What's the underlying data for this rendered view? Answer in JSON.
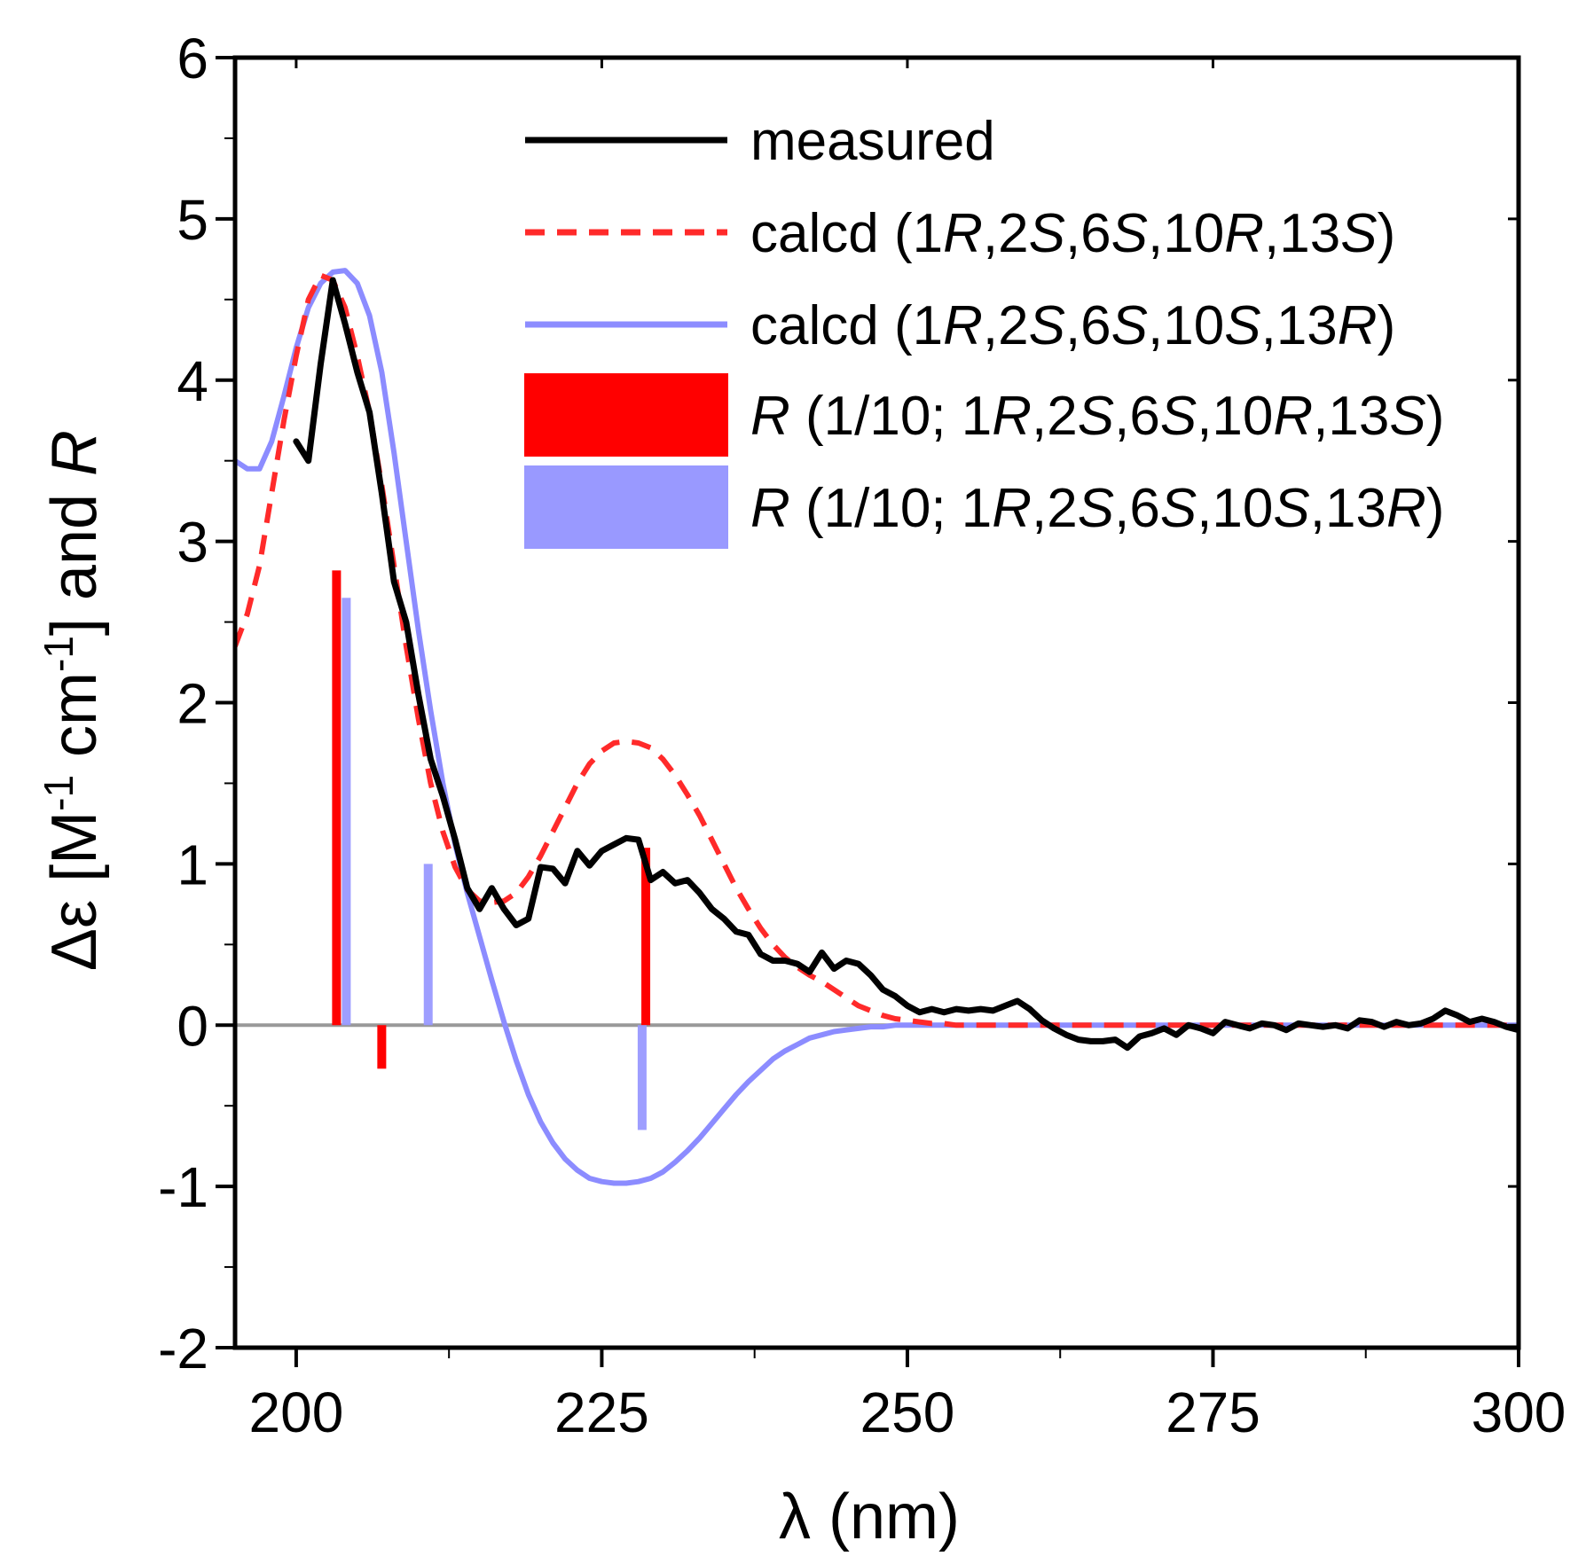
{
  "chart_data": {
    "type": "line",
    "title": "",
    "xlabel": "λ (nm)",
    "ylabel_parts": {
      "delta": "Δε [M",
      "exp1": "-1",
      "mid": " cm",
      "exp2": "-1",
      "end": "] and ",
      "R": "R"
    },
    "xlim": [
      195,
      300
    ],
    "ylim": [
      -2,
      6
    ],
    "x_ticks": [
      200,
      225,
      250,
      275,
      300
    ],
    "y_ticks": [
      -2,
      -1,
      0,
      1,
      2,
      3,
      4,
      5,
      6
    ],
    "x_tick_labels": [
      "200",
      "225",
      "250",
      "275",
      "300"
    ],
    "y_tick_labels": [
      "-2",
      "-1",
      "0",
      "1",
      "2",
      "3",
      "4",
      "5",
      "6"
    ],
    "zero_line": true,
    "legend": {
      "position": "top-right",
      "entries": [
        {
          "kind": "line",
          "color": "#000000",
          "dash": false,
          "parts": [
            {
              "t": "measured",
              "i": false
            }
          ]
        },
        {
          "kind": "line",
          "color": "#ff2a2a",
          "dash": true,
          "parts": [
            {
              "t": "calcd (1",
              "i": false
            },
            {
              "t": "R",
              "i": true
            },
            {
              "t": ",2",
              "i": false
            },
            {
              "t": "S",
              "i": true
            },
            {
              "t": ",6",
              "i": false
            },
            {
              "t": "S",
              "i": true
            },
            {
              "t": ",10",
              "i": false
            },
            {
              "t": "R",
              "i": true
            },
            {
              "t": ",13",
              "i": false
            },
            {
              "t": "S",
              "i": true
            },
            {
              "t": ")",
              "i": false
            }
          ]
        },
        {
          "kind": "line",
          "color": "#8c8cff",
          "dash": false,
          "parts": [
            {
              "t": "calcd (1",
              "i": false
            },
            {
              "t": "R",
              "i": true
            },
            {
              "t": ",2",
              "i": false
            },
            {
              "t": "S",
              "i": true
            },
            {
              "t": ",6",
              "i": false
            },
            {
              "t": "S",
              "i": true
            },
            {
              "t": ",10",
              "i": false
            },
            {
              "t": "S",
              "i": true
            },
            {
              "t": ",13",
              "i": false
            },
            {
              "t": "R",
              "i": true
            },
            {
              "t": ")",
              "i": false
            }
          ]
        },
        {
          "kind": "box",
          "color": "#ff0000",
          "parts": [
            {
              "t": "R",
              "i": true
            },
            {
              "t": " (1/10; 1",
              "i": false
            },
            {
              "t": "R",
              "i": true
            },
            {
              "t": ",2",
              "i": false
            },
            {
              "t": "S",
              "i": true
            },
            {
              "t": ",6",
              "i": false
            },
            {
              "t": "S",
              "i": true
            },
            {
              "t": ",10",
              "i": false
            },
            {
              "t": "R",
              "i": true
            },
            {
              "t": ",13",
              "i": false
            },
            {
              "t": "S",
              "i": true
            },
            {
              "t": ")",
              "i": false
            }
          ]
        },
        {
          "kind": "box",
          "color": "#9999ff",
          "parts": [
            {
              "t": "R",
              "i": true
            },
            {
              "t": " (1/10; 1",
              "i": false
            },
            {
              "t": "R",
              "i": true
            },
            {
              "t": ",2",
              "i": false
            },
            {
              "t": "S",
              "i": true
            },
            {
              "t": ",6",
              "i": false
            },
            {
              "t": "S",
              "i": true
            },
            {
              "t": ",10",
              "i": false
            },
            {
              "t": "S",
              "i": true
            },
            {
              "t": ",13",
              "i": false
            },
            {
              "t": "R",
              "i": true
            },
            {
              "t": ")",
              "i": false
            }
          ]
        }
      ]
    },
    "series": [
      {
        "name": "measured",
        "color": "#000000",
        "dash": false,
        "x": [
          200,
          201,
          202,
          203,
          204,
          205,
          206,
          207,
          208,
          209,
          210,
          211,
          212,
          213,
          214,
          215,
          216,
          217,
          218,
          219,
          220,
          221,
          222,
          223,
          224,
          225,
          226,
          227,
          228,
          229,
          230,
          231,
          232,
          233,
          234,
          235,
          236,
          237,
          238,
          239,
          240,
          241,
          242,
          243,
          244,
          245,
          246,
          247,
          248,
          249,
          250,
          251,
          252,
          253,
          254,
          255,
          256,
          257,
          258,
          259,
          260,
          261,
          262,
          263,
          264,
          265,
          266,
          267,
          268,
          269,
          270,
          271,
          272,
          273,
          274,
          275,
          276,
          277,
          278,
          279,
          280,
          281,
          282,
          283,
          284,
          285,
          286,
          287,
          288,
          289,
          290,
          291,
          292,
          293,
          294,
          295,
          296,
          297,
          298,
          299,
          300
        ],
        "y": [
          3.62,
          3.5,
          4.1,
          4.62,
          4.35,
          4.05,
          3.8,
          3.3,
          2.75,
          2.5,
          2.05,
          1.65,
          1.42,
          1.15,
          0.85,
          0.72,
          0.85,
          0.72,
          0.62,
          0.66,
          0.98,
          0.97,
          0.88,
          1.08,
          0.99,
          1.08,
          1.12,
          1.16,
          1.15,
          0.9,
          0.95,
          0.88,
          0.9,
          0.82,
          0.72,
          0.66,
          0.58,
          0.56,
          0.44,
          0.4,
          0.4,
          0.38,
          0.33,
          0.45,
          0.35,
          0.4,
          0.38,
          0.31,
          0.22,
          0.18,
          0.12,
          0.08,
          0.1,
          0.08,
          0.1,
          0.09,
          0.1,
          0.09,
          0.12,
          0.15,
          0.1,
          0.03,
          -0.02,
          -0.06,
          -0.09,
          -0.1,
          -0.1,
          -0.09,
          -0.14,
          -0.07,
          -0.05,
          -0.02,
          -0.06,
          0.0,
          -0.02,
          -0.05,
          0.02,
          0.0,
          -0.02,
          0.01,
          0.0,
          -0.03,
          0.01,
          0.0,
          -0.01,
          0.0,
          -0.02,
          0.03,
          0.02,
          -0.01,
          0.02,
          0.0,
          0.01,
          0.04,
          0.09,
          0.06,
          0.02,
          0.04,
          0.02,
          -0.01,
          -0.03
        ]
      },
      {
        "name": "calcd (1R,2S,6S,10R,13S)",
        "color": "#ff2a2a",
        "dash": true,
        "x": [
          195,
          196,
          197,
          198,
          199,
          200,
          201,
          202,
          203,
          204,
          205,
          206,
          207,
          208,
          209,
          210,
          211,
          212,
          213,
          214,
          215,
          216,
          217,
          218,
          219,
          220,
          221,
          222,
          223,
          224,
          225,
          226,
          227,
          228,
          229,
          230,
          231,
          232,
          233,
          234,
          235,
          236,
          237,
          238,
          239,
          240,
          241,
          242,
          243,
          244,
          245,
          246,
          247,
          248,
          249,
          250,
          251,
          252,
          253,
          254,
          255,
          258,
          262,
          266,
          270,
          275,
          280,
          285,
          290,
          295,
          300
        ],
        "y": [
          2.35,
          2.55,
          2.85,
          3.3,
          3.75,
          4.15,
          4.5,
          4.65,
          4.62,
          4.45,
          4.15,
          3.8,
          3.35,
          2.85,
          2.35,
          1.9,
          1.5,
          1.2,
          0.98,
          0.84,
          0.77,
          0.76,
          0.77,
          0.82,
          0.92,
          1.05,
          1.2,
          1.35,
          1.5,
          1.62,
          1.7,
          1.75,
          1.76,
          1.75,
          1.72,
          1.65,
          1.55,
          1.43,
          1.3,
          1.15,
          1.0,
          0.85,
          0.72,
          0.6,
          0.5,
          0.42,
          0.36,
          0.31,
          0.27,
          0.22,
          0.17,
          0.12,
          0.09,
          0.06,
          0.04,
          0.03,
          0.02,
          0.01,
          0.01,
          0.0,
          0.0,
          0.0,
          0.0,
          0.0,
          0.0,
          0.0,
          0.0,
          0.0,
          0.0,
          0.0,
          0.0
        ]
      },
      {
        "name": "calcd (1R,2S,6S,10S,13R)",
        "color": "#8c8cff",
        "dash": false,
        "x": [
          195,
          196,
          197,
          198,
          199,
          200,
          201,
          202,
          203,
          204,
          205,
          206,
          207,
          208,
          209,
          210,
          211,
          212,
          213,
          214,
          215,
          216,
          217,
          218,
          219,
          220,
          221,
          222,
          223,
          224,
          225,
          226,
          227,
          228,
          229,
          230,
          231,
          232,
          233,
          234,
          235,
          236,
          237,
          238,
          239,
          240,
          241,
          242,
          243,
          244,
          245,
          246,
          247,
          248,
          249,
          250,
          252,
          255,
          260,
          270,
          280,
          290,
          300
        ],
        "y": [
          3.5,
          3.45,
          3.45,
          3.62,
          3.9,
          4.2,
          4.45,
          4.6,
          4.67,
          4.68,
          4.6,
          4.4,
          4.05,
          3.55,
          3.0,
          2.45,
          1.95,
          1.5,
          1.12,
          0.82,
          0.55,
          0.28,
          0.02,
          -0.22,
          -0.43,
          -0.6,
          -0.73,
          -0.83,
          -0.9,
          -0.95,
          -0.97,
          -0.98,
          -0.98,
          -0.97,
          -0.95,
          -0.91,
          -0.85,
          -0.78,
          -0.7,
          -0.61,
          -0.52,
          -0.43,
          -0.35,
          -0.28,
          -0.21,
          -0.16,
          -0.12,
          -0.08,
          -0.06,
          -0.04,
          -0.03,
          -0.02,
          -0.01,
          -0.01,
          0.0,
          0.0,
          0.0,
          0.0,
          0.0,
          0.0,
          0.0,
          0.0,
          0.0
        ]
      }
    ],
    "sticks": [
      {
        "name": "R (1/10; 1R,2S,6S,10R,13S)",
        "color": "#ff0000",
        "x": [
          203.3,
          207,
          228.6
        ],
        "y": [
          2.82,
          -0.27,
          1.1
        ]
      },
      {
        "name": "R (1/10; 1R,2S,6S,10S,13R)",
        "color": "#9999ff",
        "x": [
          204.1,
          210.8,
          228.3
        ],
        "y": [
          2.65,
          1.0,
          -0.65
        ]
      }
    ]
  }
}
